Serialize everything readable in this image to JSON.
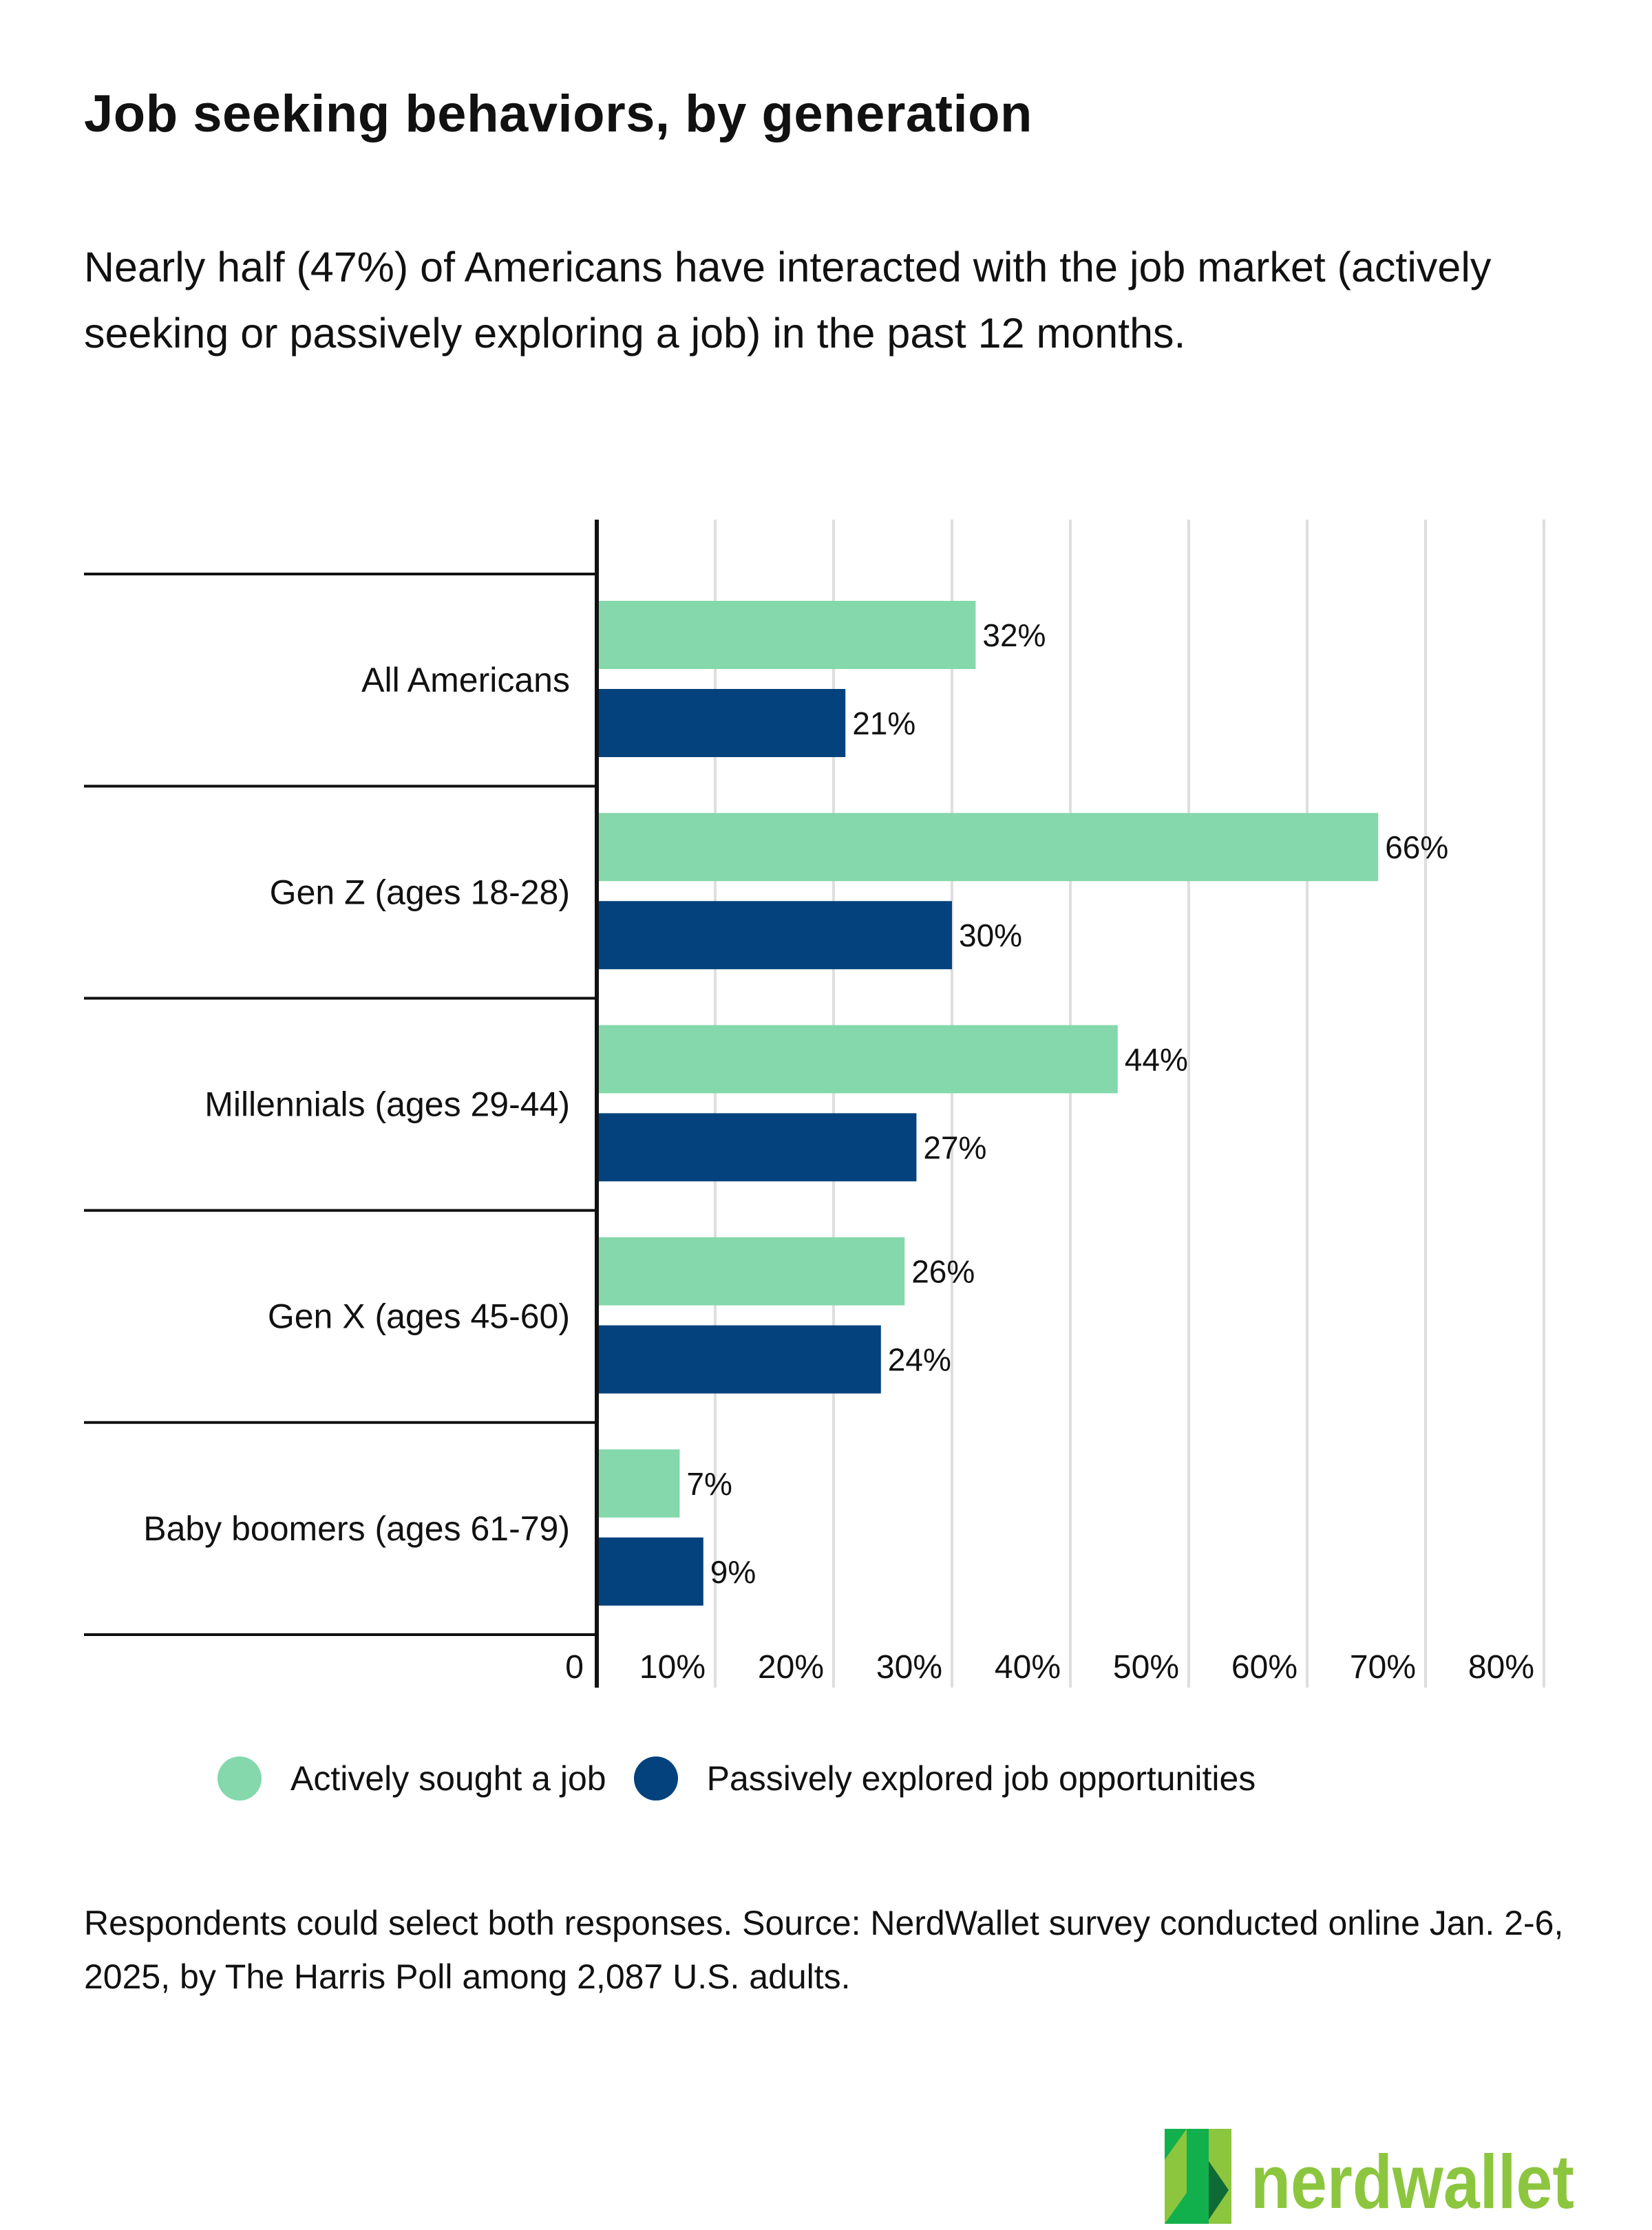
{
  "title": "Job seeking behaviors, by generation",
  "subtitle": "Nearly half (47%) of Americans have interacted with the job market (actively seeking or passively exploring a job) in the past 12 months.",
  "footnote": "Respondents could select both responses. Source: NerdWallet survey conducted online Jan. 2-6, 2025, by The Harris Poll among 2,087 U.S. adults.",
  "logo_text": "nerdwallet",
  "chart_data": {
    "type": "bar",
    "orientation": "horizontal",
    "title": "Job seeking behaviors, by generation",
    "categories": [
      "All Americans",
      "Gen Z (ages 18-28)",
      "Millennials (ages 29-44)",
      "Gen X (ages 45-60)",
      "Baby boomers (ages 61-79)"
    ],
    "series": [
      {
        "name": "Actively sought a job",
        "color": "#84d8ab",
        "values": [
          32,
          66,
          44,
          26,
          7
        ],
        "labels": [
          "32%",
          "66%",
          "44%",
          "26%",
          "7%"
        ]
      },
      {
        "name": "Passively explored job opportunities",
        "color": "#03427c",
        "values": [
          21,
          30,
          27,
          24,
          9
        ],
        "labels": [
          "21%",
          "30%",
          "27%",
          "24%",
          "9%"
        ]
      }
    ],
    "xlim": [
      0,
      80
    ],
    "xticks": [
      "0",
      "10%",
      "20%",
      "30%",
      "40%",
      "50%",
      "60%",
      "70%",
      "80%"
    ],
    "grid": true,
    "legend_position": "bottom"
  }
}
